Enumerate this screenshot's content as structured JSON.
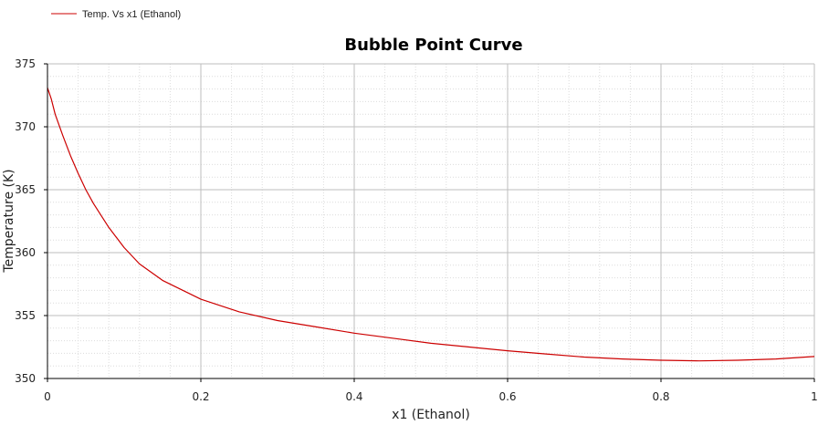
{
  "chart_data": {
    "type": "line",
    "title": "Bubble Point Curve",
    "xlabel": "x1 (Ethanol)",
    "ylabel": "Temperature (K)",
    "xlim": [
      0,
      1
    ],
    "ylim": [
      350,
      375
    ],
    "x_ticks": [
      "0",
      "0.2",
      "0.4",
      "0.6",
      "0.8",
      "1"
    ],
    "y_ticks": [
      "350",
      "355",
      "360",
      "365",
      "370",
      "375"
    ],
    "grid": true,
    "legend_position": "top-left",
    "series": [
      {
        "name": "Temp. Vs x1 (Ethanol)",
        "color": "#cc0000",
        "x": [
          0,
          0.005,
          0.01,
          0.02,
          0.03,
          0.04,
          0.05,
          0.06,
          0.08,
          0.1,
          0.12,
          0.15,
          0.2,
          0.25,
          0.3,
          0.35,
          0.4,
          0.45,
          0.5,
          0.55,
          0.6,
          0.65,
          0.7,
          0.75,
          0.8,
          0.85,
          0.9,
          0.95,
          1.0
        ],
        "y": [
          373.1,
          372.2,
          371.0,
          369.3,
          367.7,
          366.3,
          365.0,
          363.9,
          362.0,
          360.4,
          359.1,
          357.8,
          356.3,
          355.3,
          354.6,
          354.1,
          353.6,
          353.2,
          352.8,
          352.5,
          352.2,
          351.95,
          351.7,
          351.55,
          351.45,
          351.4,
          351.45,
          351.55,
          351.75
        ]
      }
    ]
  }
}
